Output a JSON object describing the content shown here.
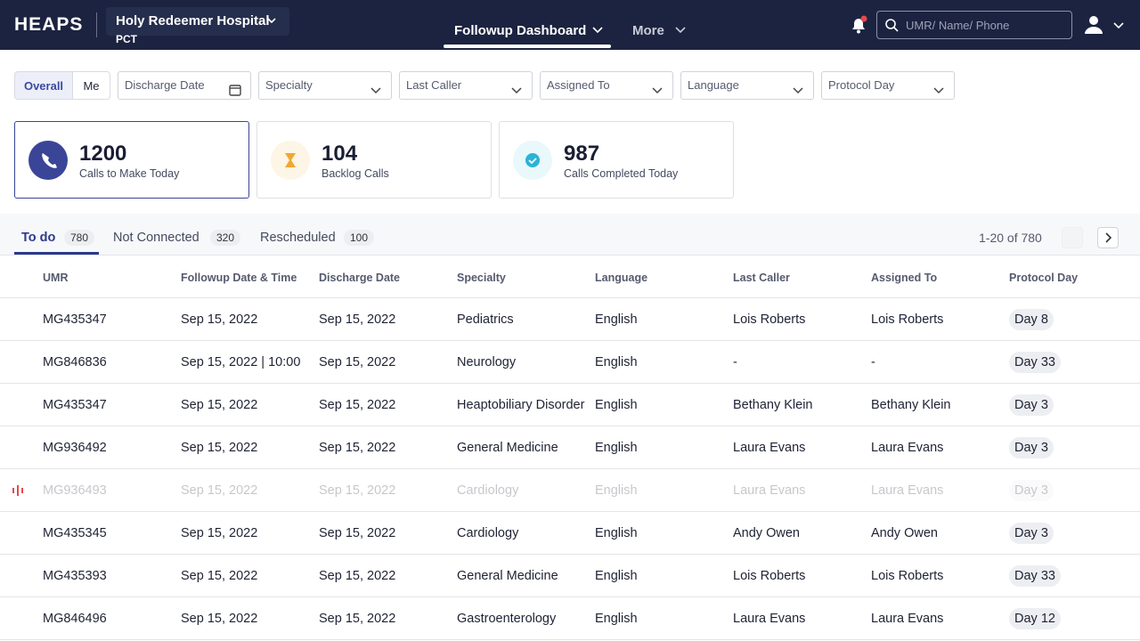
{
  "header": {
    "logo": "HEAPS",
    "hospital": "Holy Redeemer Hospital",
    "role": "PCT",
    "nav": [
      "Followup Dashboard",
      "More"
    ],
    "search_placeholder": "UMR/ Name/ Phone"
  },
  "filters": {
    "toggle": [
      "Overall",
      "Me"
    ],
    "dropdowns": [
      "Discharge Date",
      "Specialty",
      "Last Caller",
      "Assigned To",
      "Language",
      "Protocol Day"
    ]
  },
  "stats": [
    {
      "value": 1200,
      "label": "Calls to Make Today"
    },
    {
      "value": 104,
      "label": "Backlog Calls"
    },
    {
      "value": 987,
      "label": "Calls Completed Today"
    }
  ],
  "tabs": [
    {
      "label": "To do",
      "count": 780
    },
    {
      "label": "Not Connected",
      "count": 320
    },
    {
      "label": "Rescheduled",
      "count": 100
    }
  ],
  "pagination": "1-20 of 780",
  "table": {
    "columns": [
      "UMR",
      "Followup Date & Time",
      "Discharge Date",
      "Specialty",
      "Language",
      "Last Caller",
      "Assigned To",
      "Protocol Day"
    ],
    "rows": [
      [
        "MG435347",
        "Sep 15, 2022",
        "Sep 15, 2022",
        "Pediatrics",
        "English",
        "Lois Roberts",
        "Lois Roberts",
        "Day 8"
      ],
      [
        "MG846836",
        "Sep 15, 2022 | 10:00",
        "Sep 15, 2022",
        "Neurology",
        "English",
        "-",
        "-",
        "Day 33"
      ],
      [
        "MG435347",
        "Sep 15, 2022",
        "Sep 15, 2022",
        "Heaptobiliary Disorder",
        "English",
        "Bethany Klein",
        "Bethany Klein",
        "Day 3"
      ],
      [
        "MG936492",
        "Sep 15, 2022",
        "Sep 15, 2022",
        "General Medicine",
        "English",
        "Laura Evans",
        "Laura Evans",
        "Day 3"
      ],
      [
        "MG936493",
        "Sep 15, 2022",
        "Sep 15, 2022",
        "Cardiology",
        "English",
        "Laura Evans",
        "Laura Evans",
        "Day 3"
      ],
      [
        "MG435345",
        "Sep 15, 2022",
        "Sep 15, 2022",
        "Cardiology",
        "English",
        "Andy Owen",
        "Andy Owen",
        "Day 3"
      ],
      [
        "MG435393",
        "Sep 15, 2022",
        "Sep 15, 2022",
        "General Medicine",
        "English",
        "Lois Roberts",
        "Lois Roberts",
        "Day 33"
      ],
      [
        "MG846496",
        "Sep 15, 2022",
        "Sep 15, 2022",
        "Gastroenterology",
        "English",
        "Laura Evans",
        "Laura Evans",
        "Day 12"
      ]
    ]
  }
}
